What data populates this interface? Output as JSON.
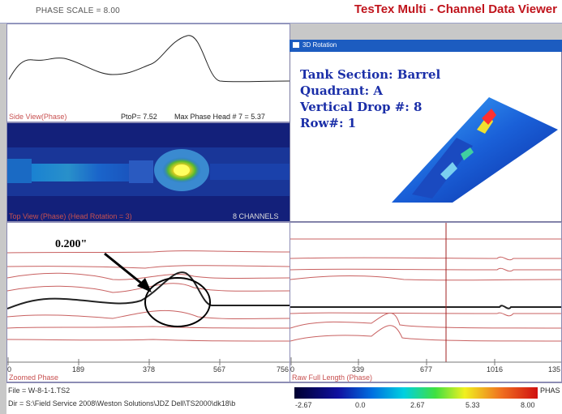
{
  "header": {
    "phase_scale": "PHASE SCALE = 8.00",
    "app_title": "TesTex Multi - Channel Data Viewer"
  },
  "side_view": {
    "label": "Side View(Phase)",
    "ptop": "PtoP= 7.52",
    "max_phase": "Max Phase Head # 7 = 5.37"
  },
  "top_view": {
    "label": "Top View (Phase)  (Head Rotation = 3)",
    "channels": "8 CHANNELS"
  },
  "rotation_window": {
    "caption": "3D Rotation",
    "lines": [
      "Tank Section: Barrel",
      "Quadrant: A",
      "Vertical Drop #: 8",
      "Row#: 1"
    ]
  },
  "zoomed": {
    "label": "Zoomed Phase",
    "annotation": "0.200\"",
    "ticks": [
      "0",
      "189",
      "378",
      "567",
      "756"
    ]
  },
  "raw": {
    "label": "Raw Full Length (Phase)",
    "ticks": [
      "0",
      "339",
      "677",
      "1016",
      "135"
    ]
  },
  "status": {
    "file": "File = W-8-1-1.TS2",
    "dir": "Dir = S:\\Field Service 2008\\Weston Solutions\\JDZ Dell\\TS2000\\dk18\\b"
  },
  "colorbar": {
    "label": "PHAS",
    "ticks": [
      "-2.67",
      "0.0",
      "2.67",
      "5.33",
      "8.00"
    ]
  },
  "colors": {
    "title_red": "#c0141c",
    "trace_red": "#c0504d",
    "heat_dark": "#13207a",
    "text_blue": "#1a2ea8"
  }
}
